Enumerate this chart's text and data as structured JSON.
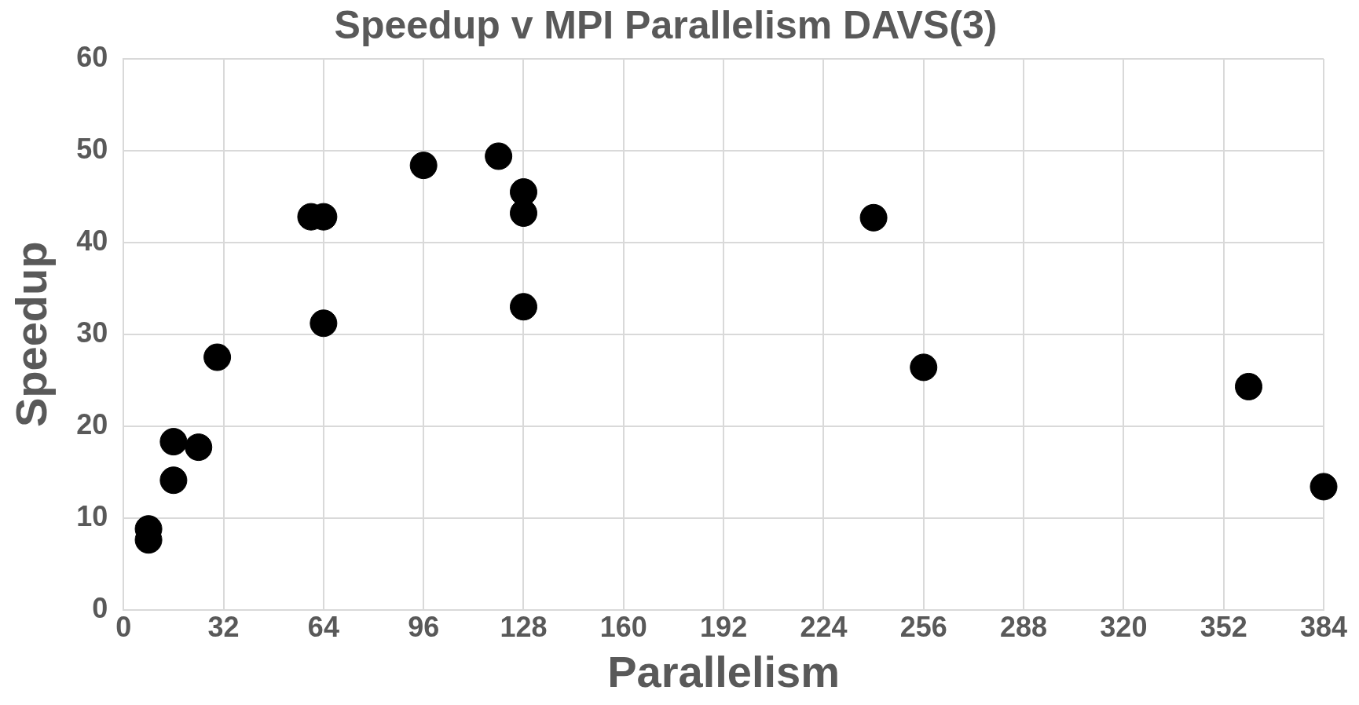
{
  "chart_data": {
    "type": "scatter",
    "title": "Speedup v MPI Parallelism DAVS(3)",
    "xlabel": "Parallelism",
    "ylabel": "Speedup",
    "series": [
      {
        "color": "#000000",
        "x": [
          8,
          8,
          16,
          16,
          24,
          30,
          60,
          64,
          64,
          96,
          120,
          128,
          128,
          128,
          240,
          256,
          360,
          384
        ],
        "values": [
          8.8,
          7.6,
          18.3,
          14.1,
          17.7,
          27.5,
          42.8,
          42.8,
          31.2,
          48.4,
          49.4,
          45.5,
          43.2,
          33,
          42.7,
          26.4,
          24.3,
          13.4
        ]
      }
    ],
    "xlim": [
      0,
      384
    ],
    "xticks": [
      0,
      32,
      64,
      96,
      128,
      160,
      192,
      224,
      256,
      288,
      320,
      352,
      384
    ],
    "ylim": [
      0,
      60
    ],
    "yticks": [
      0,
      10,
      20,
      30,
      40,
      50,
      60
    ],
    "grid": true,
    "marker": "circle",
    "legend": false
  }
}
